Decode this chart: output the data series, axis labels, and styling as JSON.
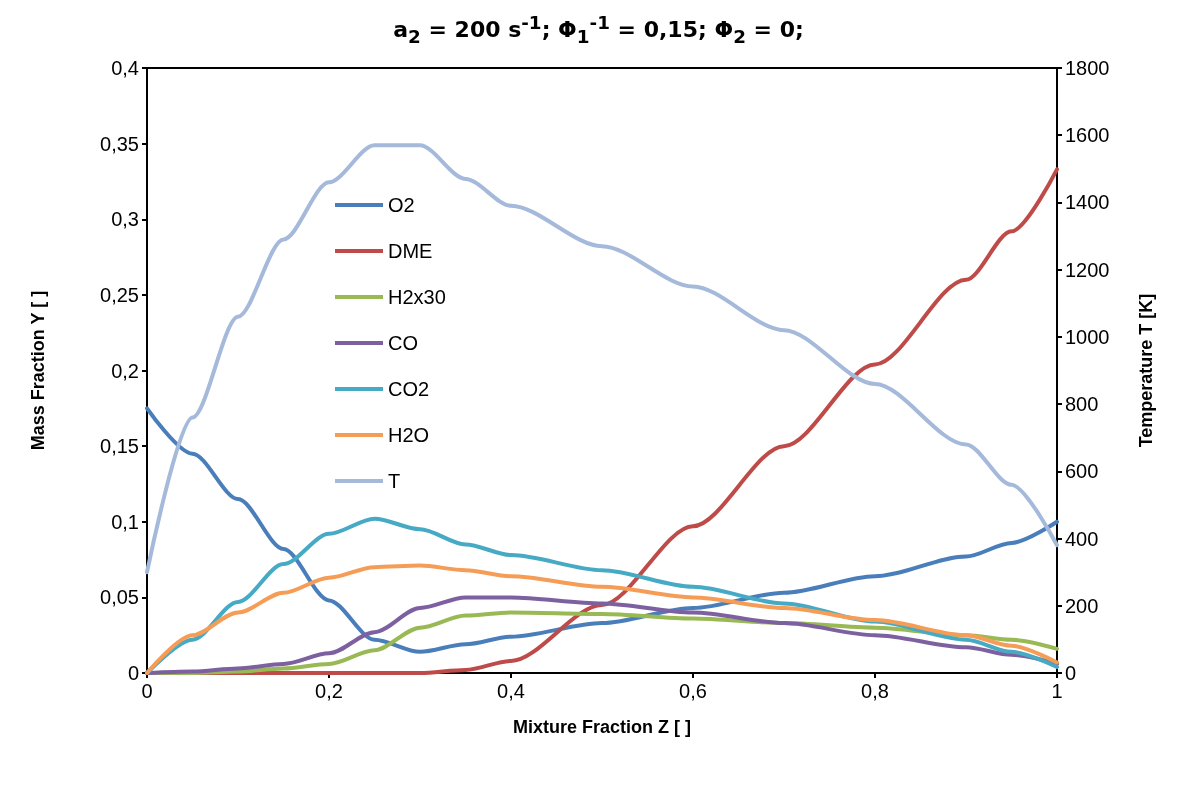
{
  "chart_data": {
    "type": "line",
    "title": "a$_{2}$ = 200 s$^{-1}$;  Φ$_{1}$$^{-1}$ = 0,15; Φ$_{2}$ = 0;",
    "xlabel": "Mixture Fraction Z [ ]",
    "ylabel": "Mass Fraction Y [ ]",
    "y2label": "Temperature T [K]",
    "x": [
      0,
      0.05,
      0.1,
      0.15,
      0.2,
      0.25,
      0.3,
      0.35,
      0.4,
      0.5,
      0.6,
      0.7,
      0.8,
      0.9,
      0.95,
      1
    ],
    "series": [
      {
        "name": "O2",
        "color": "#4a7ebb",
        "values": [
          0.175,
          0.145,
          0.115,
          0.082,
          0.048,
          0.022,
          0.014,
          0.019,
          0.024,
          0.033,
          0.043,
          0.053,
          0.064,
          0.077,
          0.086,
          0.1
        ]
      },
      {
        "name": "DME",
        "color": "#be4b48",
        "values": [
          0,
          0,
          0,
          0,
          0,
          0,
          0,
          0.002,
          0.008,
          0.045,
          0.097,
          0.15,
          0.204,
          0.26,
          0.292,
          0.333
        ]
      },
      {
        "name": "H2x30",
        "color": "#98b954",
        "values": [
          0,
          0,
          0.001,
          0.003,
          0.006,
          0.015,
          0.03,
          0.038,
          0.04,
          0.039,
          0.036,
          0.033,
          0.03,
          0.025,
          0.022,
          0.016
        ]
      },
      {
        "name": "CO",
        "color": "#7d60a0",
        "values": [
          0,
          0.001,
          0.003,
          0.006,
          0.013,
          0.027,
          0.043,
          0.05,
          0.05,
          0.046,
          0.04,
          0.033,
          0.025,
          0.017,
          0.012,
          0.006
        ]
      },
      {
        "name": "CO2",
        "color": "#46aac5",
        "values": [
          0,
          0.022,
          0.047,
          0.072,
          0.092,
          0.102,
          0.095,
          0.085,
          0.078,
          0.068,
          0.057,
          0.046,
          0.034,
          0.022,
          0.014,
          0.004
        ]
      },
      {
        "name": "H2O",
        "color": "#f59d56",
        "values": [
          0,
          0.025,
          0.04,
          0.053,
          0.063,
          0.07,
          0.071,
          0.068,
          0.064,
          0.057,
          0.05,
          0.043,
          0.035,
          0.025,
          0.018,
          0.007
        ]
      },
      {
        "name": "T",
        "color": "#a5b9db",
        "axis": "y2",
        "values": [
          300,
          760,
          1060,
          1290,
          1460,
          1570,
          1570,
          1470,
          1390,
          1270,
          1150,
          1020,
          860,
          680,
          560,
          380
        ]
      }
    ],
    "xlim": [
      0,
      1
    ],
    "xticks": [
      0,
      {
        "value": 0.2,
        "label": "0,2"
      },
      {
        "value": 0.4,
        "label": "0,4"
      },
      {
        "value": 0.6,
        "label": "0,6"
      },
      {
        "value": 0.8,
        "label": "0,8"
      },
      1
    ],
    "ylim": [
      0,
      0.4
    ],
    "yticks": [
      0,
      {
        "value": 0.05,
        "label": "0,05"
      },
      {
        "value": 0.1,
        "label": "0,1"
      },
      {
        "value": 0.15,
        "label": "0,15"
      },
      {
        "value": 0.2,
        "label": "0,2"
      },
      {
        "value": 0.25,
        "label": "0,25"
      },
      {
        "value": 0.3,
        "label": "0,3"
      },
      {
        "value": 0.35,
        "label": "0,35"
      },
      {
        "value": 0.4,
        "label": "0,4"
      }
    ],
    "y2lim": [
      0,
      1800
    ],
    "y2ticks": [
      0,
      200,
      400,
      600,
      800,
      1000,
      1200,
      1400,
      1600,
      1800
    ],
    "grid": false,
    "legend": "top left",
    "marker": "none",
    "line_style": "solid"
  }
}
